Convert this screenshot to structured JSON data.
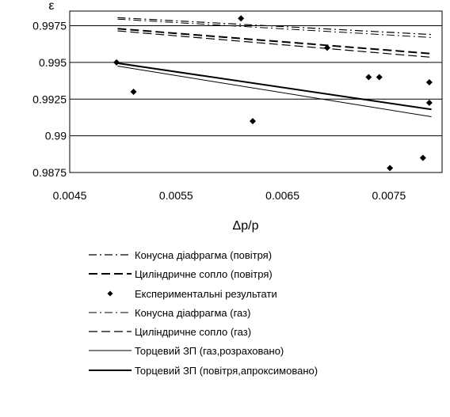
{
  "chart_data": {
    "type": "scatter",
    "xlabel": "Δp/p",
    "ylabel": "ε",
    "xlim": [
      0.0045,
      0.008
    ],
    "ylim": [
      0.9875,
      0.9985
    ],
    "x_ticks": [
      "0.0045",
      "0.0055",
      "0.0065",
      "0.0075"
    ],
    "x_tick_values": [
      0.0045,
      0.0055,
      0.0065,
      0.0075
    ],
    "y_ticks": [
      "0.9875",
      "0.99",
      "0.9925",
      "0.995",
      "0.9975"
    ],
    "y_tick_values": [
      0.9875,
      0.99,
      0.9925,
      0.995,
      0.9975
    ],
    "grid": "horizontal",
    "legend_position": "bottom",
    "series": [
      {
        "name": "Конусна діафрагма (повітря)",
        "style": "dashdot",
        "width": 1.2,
        "x": [
          0.00495,
          0.0079
        ],
        "y": [
          0.99805,
          0.9969
        ]
      },
      {
        "name": "Циліндричне сопло (повітря)",
        "style": "dash",
        "width": 2.0,
        "x": [
          0.00495,
          0.0079
        ],
        "y": [
          0.9973,
          0.9956
        ]
      },
      {
        "name": "Експериментальні результати",
        "style": "markers",
        "x": [
          0.00494,
          0.0051,
          0.00611,
          0.00622,
          0.00692,
          0.00731,
          0.00741,
          0.00751,
          0.00782,
          0.00788,
          0.00788
        ],
        "y": [
          0.995,
          0.993,
          0.998,
          0.991,
          0.996,
          0.994,
          0.994,
          0.9878,
          0.9885,
          0.99365,
          0.99225
        ]
      },
      {
        "name": "Конусна діафрагма (газ)",
        "style": "dashdot",
        "width": 1.0,
        "x": [
          0.00495,
          0.0079
        ],
        "y": [
          0.99795,
          0.9967
        ]
      },
      {
        "name": "Циліндричне сопло (газ)",
        "style": "dash",
        "width": 1.2,
        "x": [
          0.00495,
          0.0079
        ],
        "y": [
          0.99715,
          0.99535
        ]
      },
      {
        "name": "Торцевий ЗП (газ,розраховано)",
        "style": "solid",
        "width": 1.0,
        "x": [
          0.00495,
          0.0079
        ],
        "y": [
          0.99475,
          0.9913
        ]
      },
      {
        "name": "Торцевий ЗП (повітря,апроксимовано)",
        "style": "solid",
        "width": 2.0,
        "x": [
          0.00495,
          0.0079
        ],
        "y": [
          0.99495,
          0.9918
        ]
      }
    ]
  },
  "colors": {
    "line": "#000000",
    "grid": "#000000",
    "background": "#ffffff"
  }
}
